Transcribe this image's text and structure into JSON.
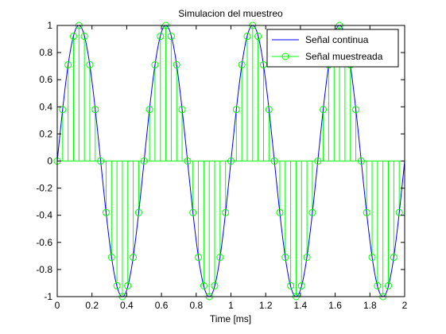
{
  "chart_data": {
    "type": "line",
    "title": "Simulacion del muestreo",
    "xlabel": "Time [ms]",
    "ylabel": "",
    "xlim": [
      0,
      2
    ],
    "ylim": [
      -1,
      1
    ],
    "xticks": [
      0,
      0.2,
      0.4,
      0.6,
      0.8,
      1,
      1.2,
      1.4,
      1.6,
      1.8,
      2
    ],
    "xtick_labels": [
      "0",
      "0.2",
      "0.4",
      "0.6",
      "0.8",
      "1",
      "1.2",
      "1.4",
      "1.6",
      "1.8",
      "2"
    ],
    "yticks": [
      1,
      0.8,
      0.6,
      0.4,
      0.2,
      0,
      -0.2,
      -0.4,
      -0.6,
      -0.8,
      -1
    ],
    "ytick_labels": [
      "1",
      "0.8",
      "0.6",
      "0.4",
      "0.2",
      "0",
      "-0.2",
      "-0.4",
      "-0.6",
      "-0.8",
      "-1"
    ],
    "grid": false,
    "legend_position": "top-right",
    "series": [
      {
        "name": "Señal continua",
        "type": "line",
        "color": "#0000ff",
        "frequency_khz": 2,
        "amplitude": 1,
        "x_range": [
          0,
          2
        ]
      },
      {
        "name": "Señal muestreada",
        "type": "stem",
        "marker": "circle",
        "color": "#00ff00",
        "sample_spacing_ms": 0.03125,
        "x": [
          0,
          0.03125,
          0.0625,
          0.09375,
          0.125,
          0.15625,
          0.1875,
          0.21875,
          0.25,
          0.28125,
          0.3125,
          0.34375,
          0.375,
          0.40625,
          0.4375,
          0.46875,
          0.5,
          0.53125,
          0.5625,
          0.59375,
          0.625,
          0.65625,
          0.6875,
          0.71875,
          0.75,
          0.78125,
          0.8125,
          0.84375,
          0.875,
          0.90625,
          0.9375,
          0.96875,
          1,
          1.03125,
          1.0625,
          1.09375,
          1.125,
          1.15625,
          1.1875,
          1.21875,
          1.25,
          1.28125,
          1.3125,
          1.34375,
          1.375,
          1.40625,
          1.4375,
          1.46875,
          1.5,
          1.53125,
          1.5625,
          1.59375,
          1.625,
          1.65625,
          1.6875,
          1.71875,
          1.75,
          1.78125,
          1.8125,
          1.84375,
          1.875,
          1.90625,
          1.9375,
          1.96875
        ],
        "y": [
          0,
          0.38,
          0.71,
          0.92,
          1,
          0.92,
          0.71,
          0.38,
          0,
          -0.38,
          -0.71,
          -0.92,
          -1,
          -0.92,
          -0.71,
          -0.38,
          0,
          0.38,
          0.71,
          0.92,
          1,
          0.92,
          0.71,
          0.38,
          0,
          -0.38,
          -0.71,
          -0.92,
          -1,
          -0.92,
          -0.71,
          -0.38,
          0,
          0.38,
          0.71,
          0.92,
          1,
          0.92,
          0.71,
          0.38,
          0,
          -0.38,
          -0.71,
          -0.92,
          -1,
          -0.92,
          -0.71,
          -0.38,
          0,
          0.38,
          0.71,
          0.92,
          1,
          0.92,
          0.71,
          0.38,
          0,
          -0.38,
          -0.71,
          -0.92,
          -1,
          -0.92,
          -0.71,
          -0.38
        ]
      }
    ]
  }
}
